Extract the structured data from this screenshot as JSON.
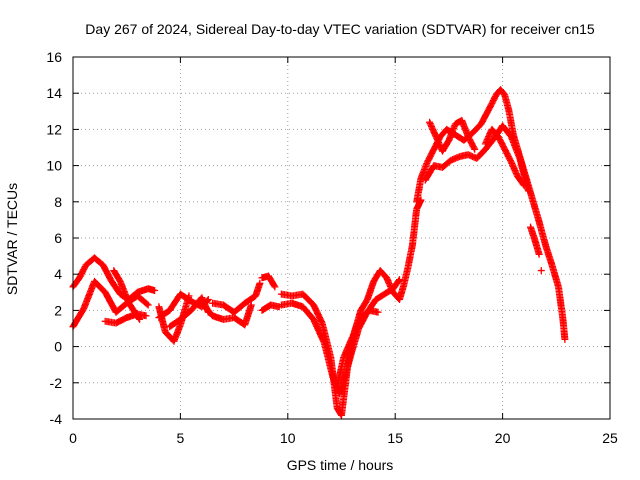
{
  "chart_data": {
    "type": "scatter",
    "title": "Day 267 of 2024, Sidereal Day-to-day VTEC variation (SDTVAR) for receiver cn15",
    "xlabel": "GPS time / hours",
    "ylabel": "SDTVAR / TECUs",
    "xlim": [
      0,
      25
    ],
    "ylim": [
      -4,
      16
    ],
    "xticks": [
      0,
      5,
      10,
      15,
      20,
      25
    ],
    "yticks": [
      -4,
      -2,
      0,
      2,
      4,
      6,
      8,
      10,
      12,
      14,
      16
    ],
    "grid": true,
    "marker": "plus",
    "series_color": "#ff0000",
    "series": [
      {
        "name": "SDTVAR",
        "tracks": [
          {
            "x": [
              0.0,
              0.3,
              0.6,
              1.0,
              1.4,
              1.8,
              2.2,
              2.6,
              3.0,
              3.5,
              3.8
            ],
            "y": [
              3.3,
              3.8,
              4.5,
              4.9,
              4.5,
              3.6,
              2.9,
              2.6,
              3.0,
              3.2,
              3.1
            ]
          },
          {
            "x": [
              0.0,
              0.5,
              1.0,
              1.5,
              2.0,
              2.5,
              3.0,
              3.5
            ],
            "y": [
              1.1,
              2.1,
              3.6,
              3.0,
              1.9,
              2.4,
              2.8,
              2.3
            ]
          },
          {
            "x": [
              1.5,
              2.0,
              2.5,
              3.0,
              3.4
            ],
            "y": [
              1.4,
              1.3,
              1.6,
              1.8,
              1.7
            ]
          },
          {
            "x": [
              1.9,
              2.2,
              2.6,
              3.1
            ],
            "y": [
              4.2,
              3.6,
              2.4,
              1.5
            ]
          },
          {
            "x": [
              4.0,
              4.3,
              4.7,
              5.0,
              5.4
            ],
            "y": [
              2.2,
              0.8,
              0.3,
              1.2,
              2.8
            ]
          },
          {
            "x": [
              4.0,
              4.5,
              5.0,
              5.5,
              6.0,
              6.3
            ],
            "y": [
              1.6,
              2.0,
              2.9,
              2.5,
              2.2,
              2.6
            ]
          },
          {
            "x": [
              4.5,
              5.0,
              5.5,
              6.0,
              6.3
            ],
            "y": [
              1.1,
              1.5,
              2.0,
              2.7,
              1.9
            ]
          },
          {
            "x": [
              6.0,
              6.5,
              7.0,
              7.5,
              8.0,
              8.3
            ],
            "y": [
              2.4,
              1.7,
              1.5,
              1.6,
              1.2,
              2.3
            ]
          },
          {
            "x": [
              6.5,
              7.0,
              7.5,
              8.0,
              8.5,
              8.7
            ],
            "y": [
              2.4,
              2.3,
              1.9,
              2.4,
              2.8,
              3.5
            ]
          },
          {
            "x": [
              8.8,
              9.1,
              9.4
            ],
            "y": [
              3.8,
              3.9,
              3.3
            ]
          },
          {
            "x": [
              8.8,
              9.2,
              9.6
            ],
            "y": [
              2.0,
              2.3,
              2.2
            ]
          },
          {
            "x": [
              9.7,
              10.2,
              10.7,
              11.2,
              11.6,
              12.0,
              12.3,
              12.5,
              12.8,
              13.1,
              13.4,
              13.7,
              14.0,
              14.3,
              14.6,
              14.9,
              15.2,
              15.4,
              15.6,
              15.8,
              16.0,
              16.2
            ],
            "y": [
              2.9,
              2.8,
              2.9,
              2.3,
              1.3,
              -0.6,
              -3.4,
              -3.8,
              -1.0,
              0.8,
              2.0,
              2.6,
              3.6,
              4.2,
              3.8,
              3.0,
              2.6,
              3.4,
              4.4,
              5.6,
              7.6,
              8.1
            ]
          },
          {
            "x": [
              9.7,
              10.2,
              10.7,
              11.2,
              11.7,
              12.1,
              12.4,
              12.7,
              13.0,
              13.3,
              13.7,
              14.1,
              14.5,
              14.9,
              15.2
            ],
            "y": [
              2.3,
              2.4,
              2.2,
              1.5,
              0.2,
              -1.7,
              -2.6,
              -1.5,
              -0.2,
              1.0,
              1.9,
              2.6,
              2.9,
              3.2,
              3.7
            ]
          },
          {
            "x": [
              12.3,
              12.6,
              13.0,
              13.4,
              13.8,
              14.2
            ],
            "y": [
              -2.2,
              -0.6,
              0.5,
              1.6,
              2.0,
              1.9
            ]
          },
          {
            "x": [
              16.0,
              16.2,
              16.5,
              16.8,
              17.1,
              17.4,
              17.8,
              18.2,
              18.6,
              19.0,
              19.4,
              19.7,
              19.9,
              20.1,
              20.3,
              20.5,
              20.8,
              21.1,
              21.4,
              21.7,
              22.0,
              22.3,
              22.6,
              22.8,
              22.9
            ],
            "y": [
              8.0,
              9.3,
              10.2,
              10.9,
              11.6,
              12.0,
              11.7,
              11.4,
              11.8,
              12.3,
              13.2,
              13.9,
              14.2,
              13.9,
              13.0,
              11.7,
              10.5,
              9.3,
              8.1,
              6.9,
              5.6,
              4.5,
              3.3,
              1.6,
              0.4
            ]
          },
          {
            "x": [
              16.4,
              16.8,
              17.2,
              17.6,
              18.0,
              18.4,
              18.8,
              19.2,
              19.6,
              20.0,
              20.4,
              20.8,
              21.2
            ],
            "y": [
              9.2,
              10.0,
              9.9,
              10.3,
              10.5,
              10.6,
              10.4,
              10.9,
              11.5,
              12.2,
              11.6,
              10.4,
              8.6
            ]
          },
          {
            "x": [
              16.6,
              16.9,
              17.2,
              17.5,
              17.8,
              18.1,
              18.4,
              18.7
            ],
            "y": [
              12.4,
              11.6,
              10.8,
              11.4,
              12.3,
              12.5,
              11.6,
              10.9
            ]
          },
          {
            "x": [
              19.2,
              19.5,
              19.8,
              20.1,
              20.4,
              20.7,
              21.0
            ],
            "y": [
              11.2,
              12.0,
              11.6,
              10.9,
              10.2,
              9.4,
              8.9
            ]
          },
          {
            "x": [
              21.3,
              21.5,
              21.7
            ],
            "y": [
              6.6,
              5.9,
              5.1
            ]
          },
          {
            "x": [
              21.8
            ],
            "y": [
              4.2
            ]
          }
        ]
      }
    ]
  }
}
